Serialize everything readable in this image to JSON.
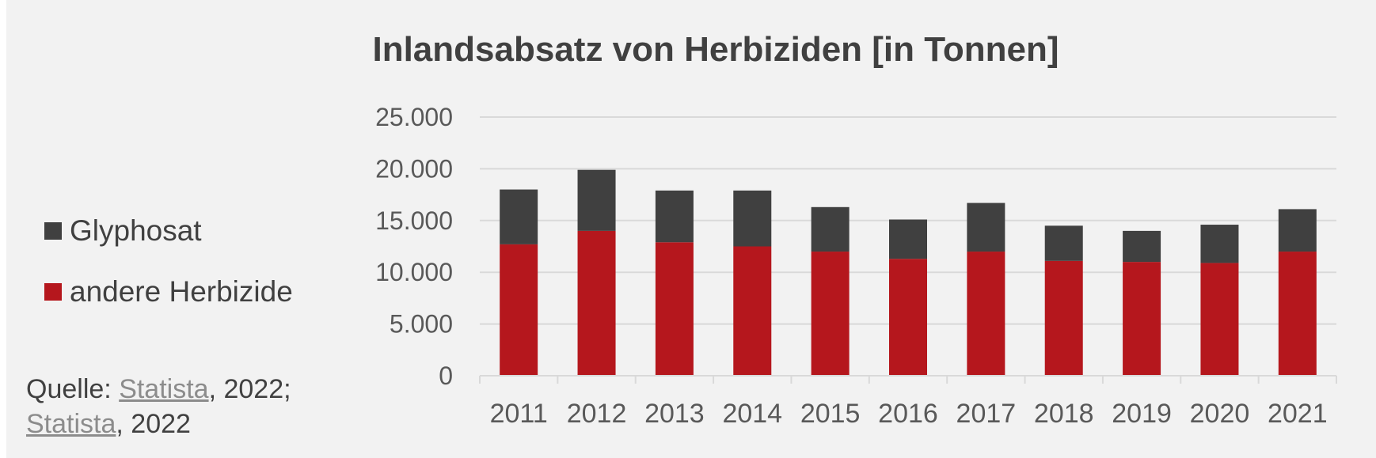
{
  "chart_data": {
    "type": "bar",
    "stacked": true,
    "title": "Inlandsabsatz von Herbiziden [in Tonnen]",
    "categories": [
      "2011",
      "2012",
      "2013",
      "2014",
      "2015",
      "2016",
      "2017",
      "2018",
      "2019",
      "2020",
      "2021"
    ],
    "series": [
      {
        "name": "andere Herbizide",
        "color": "#b5171d",
        "values": [
          12700,
          14000,
          12900,
          12500,
          12000,
          11300,
          12000,
          11100,
          11000,
          10900,
          12000
        ]
      },
      {
        "name": "Glyphosat",
        "color": "#404040",
        "values": [
          5300,
          5900,
          5000,
          5400,
          4300,
          3800,
          4700,
          3400,
          3000,
          3700,
          4100
        ]
      }
    ],
    "y_ticks": [
      "0",
      "5.000",
      "10.000",
      "15.000",
      "20.000",
      "25.000"
    ],
    "ylim": [
      0,
      25000
    ],
    "grid": true,
    "legend_position": "left"
  },
  "legend": {
    "items": [
      {
        "label": "Glyphosat",
        "color": "#404040"
      },
      {
        "label": "andere Herbizide",
        "color": "#b5171d"
      }
    ]
  },
  "source": {
    "prefix": "Quelle: ",
    "link1": "Statista",
    "mid": ", 2022;",
    "link2": "Statista",
    "suffix": ", 2022"
  }
}
